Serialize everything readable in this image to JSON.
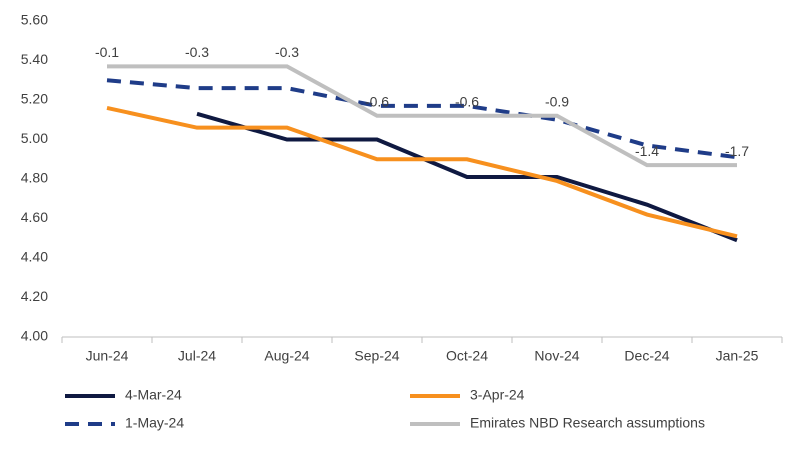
{
  "chart_data": {
    "type": "line",
    "categories": [
      "Jun-24",
      "Jul-24",
      "Aug-24",
      "Sep-24",
      "Oct-24",
      "Nov-24",
      "Dec-24",
      "Jan-25"
    ],
    "series": [
      {
        "name": "4-Mar-24",
        "color": "#0f1941",
        "dash": false,
        "values": [
          null,
          5.13,
          5.0,
          5.0,
          4.81,
          4.81,
          4.67,
          4.49
        ]
      },
      {
        "name": "3-Apr-24",
        "color": "#f7901e",
        "dash": false,
        "values": [
          5.16,
          5.06,
          5.06,
          4.9,
          4.9,
          4.79,
          4.62,
          4.51
        ]
      },
      {
        "name": "1-May-24",
        "color": "#1f3c88",
        "dash": true,
        "values": [
          5.3,
          5.26,
          5.26,
          5.17,
          5.17,
          5.1,
          4.97,
          4.91
        ]
      },
      {
        "name": "Emirates NBD Research assumptions",
        "color": "#bfbfbf",
        "dash": false,
        "values": [
          5.37,
          5.37,
          5.37,
          5.12,
          5.12,
          5.12,
          4.87,
          4.87
        ]
      }
    ],
    "annotations": [
      -0.1,
      -0.3,
      -0.3,
      -0.6,
      -0.6,
      -0.9,
      -1.4,
      -1.7
    ],
    "ylim": [
      4.0,
      5.6
    ],
    "yticks": [
      {
        "value": 4.0,
        "label": "4.00"
      },
      {
        "value": 4.2,
        "label": "4.20"
      },
      {
        "value": 4.4,
        "label": "4.40"
      },
      {
        "value": 4.6,
        "label": "4.60"
      },
      {
        "value": 4.8,
        "label": "4.80"
      },
      {
        "value": 5.0,
        "label": "5.00"
      },
      {
        "value": 5.2,
        "label": "5.20"
      },
      {
        "value": 5.4,
        "label": "5.40"
      },
      {
        "value": 5.6,
        "label": "5.60"
      }
    ],
    "grid": false,
    "legend": "bottom"
  }
}
